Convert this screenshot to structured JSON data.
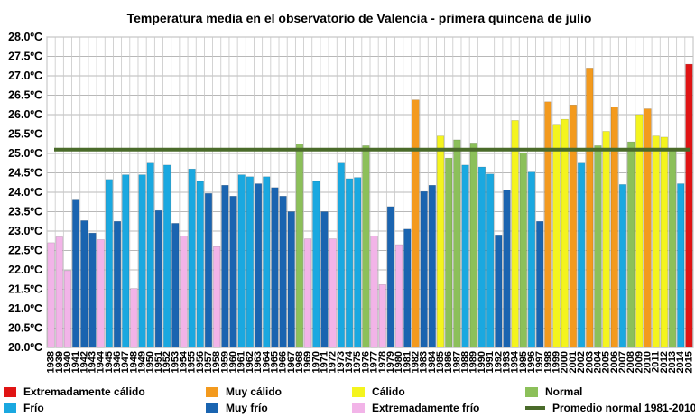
{
  "chart_data": {
    "type": "bar",
    "title": "Temperatura media en el observatorio de Valencia - primera quincena de julio",
    "xlabel": "",
    "ylabel": "",
    "ylim": [
      20.0,
      28.0
    ],
    "ytick_step": 0.5,
    "ytick_suffix": "ºC",
    "grid": true,
    "legend_position": "bottom",
    "baseline": {
      "name": "Promedio normal 1981-2010",
      "value": 25.1,
      "color": "#4a6b2a"
    },
    "legend": [
      {
        "key": "extremely_warm",
        "label": "Extremadamente cálido",
        "color": "#e01414"
      },
      {
        "key": "very_warm",
        "label": "Muy cálido",
        "color": "#f39a1e"
      },
      {
        "key": "warm",
        "label": "Cálido",
        "color": "#f4f41e"
      },
      {
        "key": "normal",
        "label": "Normal",
        "color": "#8cc05a"
      },
      {
        "key": "cold",
        "label": "Frío",
        "color": "#1aa8e0"
      },
      {
        "key": "very_cold",
        "label": "Muy frío",
        "color": "#1a64b0"
      },
      {
        "key": "extremely_cold",
        "label": "Extremadamente frío",
        "color": "#f2b4e8"
      },
      {
        "key": "baseline",
        "label": "Promedio normal 1981-2010",
        "color": "#4a6b2a",
        "line": true
      }
    ],
    "categories": [
      "1938",
      "1939",
      "1940",
      "1941",
      "1942",
      "1943",
      "1944",
      "1945",
      "1946",
      "1947",
      "1948",
      "1949",
      "1950",
      "1951",
      "1952",
      "1953",
      "1954",
      "1955",
      "1956",
      "1957",
      "1958",
      "1959",
      "1960",
      "1961",
      "1962",
      "1963",
      "1964",
      "1965",
      "1966",
      "1967",
      "1968",
      "1969",
      "1970",
      "1971",
      "1972",
      "1973",
      "1974",
      "1975",
      "1976",
      "1977",
      "1978",
      "1979",
      "1980",
      "1981",
      "1982",
      "1983",
      "1984",
      "1985",
      "1986",
      "1987",
      "1988",
      "1989",
      "1990",
      "1991",
      "1992",
      "1993",
      "1994",
      "1995",
      "1996",
      "1997",
      "1998",
      "1999",
      "2000",
      "2001",
      "2002",
      "2003",
      "2004",
      "2005",
      "2006",
      "2007",
      "2008",
      "2009",
      "2010",
      "2011",
      "2012",
      "2013",
      "2014",
      "2015"
    ],
    "values": [
      22.7,
      22.85,
      21.98,
      23.8,
      23.27,
      22.95,
      22.78,
      24.33,
      23.25,
      24.45,
      21.52,
      24.45,
      24.75,
      23.53,
      24.7,
      23.2,
      22.87,
      24.6,
      24.28,
      23.97,
      22.6,
      24.18,
      23.9,
      24.45,
      24.4,
      24.22,
      24.4,
      24.12,
      23.9,
      23.5,
      25.25,
      22.8,
      24.28,
      23.5,
      22.8,
      24.75,
      24.35,
      24.38,
      25.2,
      22.87,
      21.62,
      23.63,
      22.65,
      23.05,
      26.38,
      24.02,
      24.18,
      25.45,
      24.88,
      25.35,
      24.7,
      25.27,
      24.65,
      24.47,
      22.9,
      24.05,
      25.85,
      25.02,
      24.52,
      23.25,
      26.33,
      25.75,
      25.88,
      26.25,
      24.75,
      27.2,
      25.2,
      25.57,
      26.2,
      24.2,
      25.3,
      26.0,
      26.15,
      25.45,
      25.42,
      25.08,
      24.22,
      27.3
    ],
    "classes": [
      "extremely_cold",
      "extremely_cold",
      "extremely_cold",
      "very_cold",
      "very_cold",
      "very_cold",
      "extremely_cold",
      "cold",
      "very_cold",
      "cold",
      "extremely_cold",
      "cold",
      "cold",
      "very_cold",
      "cold",
      "very_cold",
      "extremely_cold",
      "cold",
      "cold",
      "very_cold",
      "extremely_cold",
      "very_cold",
      "very_cold",
      "cold",
      "cold",
      "very_cold",
      "cold",
      "very_cold",
      "very_cold",
      "very_cold",
      "normal",
      "extremely_cold",
      "cold",
      "very_cold",
      "extremely_cold",
      "cold",
      "cold",
      "cold",
      "normal",
      "extremely_cold",
      "extremely_cold",
      "very_cold",
      "extremely_cold",
      "very_cold",
      "very_warm",
      "very_cold",
      "very_cold",
      "warm",
      "normal",
      "normal",
      "cold",
      "normal",
      "cold",
      "cold",
      "very_cold",
      "very_cold",
      "warm",
      "normal",
      "cold",
      "very_cold",
      "very_warm",
      "warm",
      "warm",
      "very_warm",
      "cold",
      "very_warm",
      "normal",
      "warm",
      "very_warm",
      "cold",
      "normal",
      "warm",
      "very_warm",
      "warm",
      "warm",
      "normal",
      "cold",
      "extremely_warm"
    ]
  }
}
